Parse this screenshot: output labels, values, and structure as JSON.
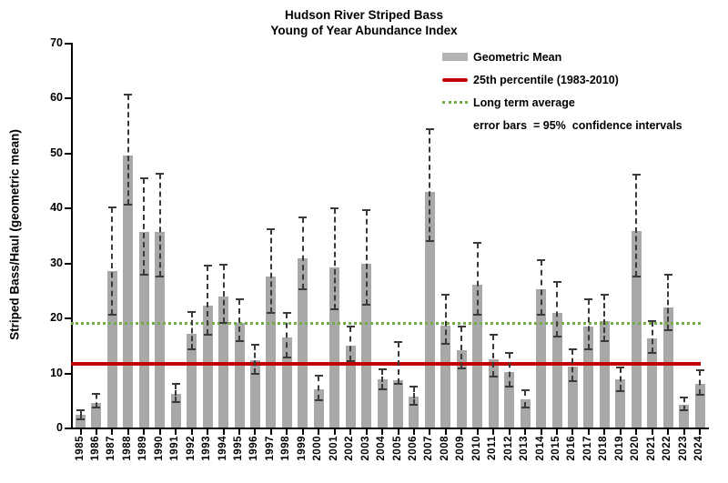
{
  "title": {
    "line1": "Hudson River Striped Bass",
    "line2": "Young of Year Abundance Index"
  },
  "y_axis": {
    "label": "Striped Bass/Haul (geometric mean)",
    "ticks": [
      0,
      10,
      20,
      30,
      40,
      50,
      60,
      70
    ]
  },
  "legend": {
    "items": [
      {
        "label": "Geometric Mean",
        "swatch": "gray-bar",
        "color": "#b2b2b2"
      },
      {
        "label": "25th percentile (1983-2010)",
        "swatch": "red-line",
        "color": "#c00000"
      },
      {
        "label": "Long term average",
        "swatch": "green-dotted-line",
        "color": "#70ad47"
      },
      {
        "label": "error bars  = 95%  confidence intervals",
        "swatch": "none",
        "color": ""
      }
    ]
  },
  "chart_data": {
    "type": "bar",
    "title": "Hudson River Striped Bass Young of Year Abundance Index",
    "xlabel": "",
    "ylabel": "Striped Bass/Haul (geometric mean)",
    "ylim": [
      0,
      70
    ],
    "grid": false,
    "legend_position": "top-right",
    "error_bars": "95% confidence intervals",
    "categories": [
      "1985",
      "1986",
      "1987",
      "1988",
      "1989",
      "1990",
      "1991",
      "1992",
      "1993",
      "1994",
      "1995",
      "1996",
      "1997",
      "1998",
      "1999",
      "2000",
      "2001",
      "2002",
      "2003",
      "2004",
      "2005",
      "2006",
      "2007",
      "2008",
      "2009",
      "2010",
      "2011",
      "2012",
      "2013",
      "2014",
      "2015",
      "2016",
      "2017",
      "2018",
      "2019",
      "2020",
      "2021",
      "2022",
      "2023",
      "2024"
    ],
    "values": [
      2.3,
      4.5,
      28.4,
      49.4,
      35.6,
      35.5,
      6.2,
      17.0,
      22.1,
      23.8,
      19.1,
      12.3,
      27.4,
      16.4,
      30.8,
      7.0,
      29.1,
      14.9,
      29.8,
      8.8,
      8.6,
      5.7,
      42.8,
      18.6,
      14.0,
      26.0,
      12.4,
      10.1,
      5.1,
      25.1,
      20.9,
      11.1,
      18.3,
      19.3,
      8.7,
      35.7,
      16.2,
      21.9,
      4.2,
      7.9
    ],
    "ci_low": [
      1.5,
      3.7,
      20.6,
      40.5,
      27.8,
      27.5,
      4.7,
      14.2,
      16.9,
      19.1,
      15.7,
      9.7,
      20.8,
      12.7,
      25.1,
      4.9,
      21.5,
      12.1,
      22.4,
      7.0,
      7.9,
      4.2,
      33.9,
      15.2,
      10.7,
      20.5,
      9.2,
      7.5,
      3.6,
      20.5,
      16.6,
      8.4,
      14.3,
      15.7,
      6.7,
      27.5,
      13.5,
      17.7,
      3.1,
      5.9
    ],
    "ci_high": [
      3.2,
      6.1,
      40.0,
      60.6,
      45.4,
      46.2,
      8.0,
      21.0,
      29.4,
      29.6,
      23.3,
      15.1,
      36.0,
      20.8,
      38.3,
      9.5,
      39.9,
      18.3,
      39.6,
      10.6,
      15.5,
      7.4,
      54.2,
      24.2,
      18.3,
      33.6,
      16.8,
      13.5,
      6.8,
      30.5,
      26.4,
      14.3,
      23.3,
      24.1,
      11.0,
      46.0,
      19.4,
      27.8,
      5.4,
      10.4
    ],
    "reference_lines": [
      {
        "name": "25th percentile (1983-2010)",
        "value": 11.6,
        "style": "solid",
        "color": "#c00000"
      },
      {
        "name": "Long term average",
        "value": 19.0,
        "style": "dotted",
        "color": "#70ad47"
      }
    ],
    "bar_color": "#a8a8a8",
    "error_bar_color": "#3a3a3a"
  }
}
